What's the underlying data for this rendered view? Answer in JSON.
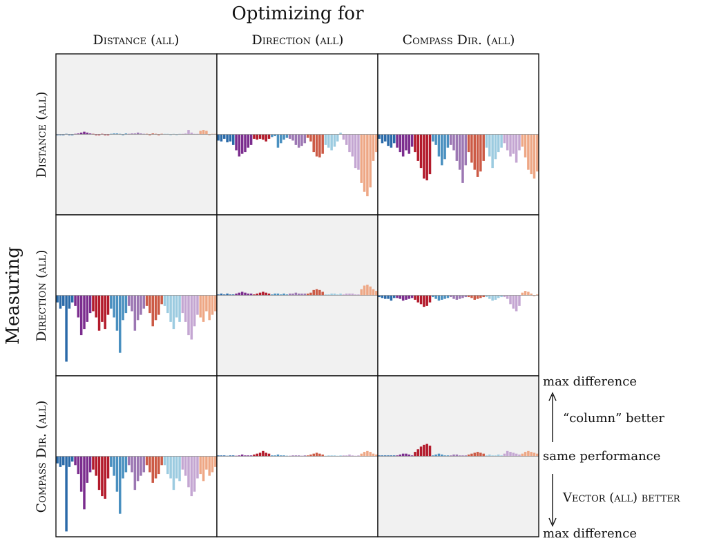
{
  "header": {
    "title": "Optimizing for",
    "columns": [
      "Distance (all)",
      "Direction (all)",
      "Compass Dir. (all)"
    ]
  },
  "side": {
    "title": "Measuring",
    "rows": [
      "Distance (all)",
      "Direction (all)",
      "Compass Dir. (all)"
    ]
  },
  "legend": {
    "max_top": "max difference",
    "better_top": "“column” better",
    "same": "same performance",
    "better_bottom": "Vector (all) better",
    "max_bottom": "max difference"
  },
  "palette": [
    "#2a6aa9",
    "#7b2d8e",
    "#b31b2c",
    "#4a90c0",
    "#9c77b3",
    "#cc5a45",
    "#9ccbe0",
    "#c4a6d2",
    "#eea785"
  ],
  "diagonal_fill": "#f1f1f1",
  "chart_data": {
    "type": "bar",
    "layout": "3x3 small multiples of relative performance bars per task",
    "grid": false,
    "ylim": [
      -1,
      1
    ],
    "groups": 9,
    "bars_per_group": 6,
    "panels": [
      {
        "row": 0,
        "col": 0,
        "diagonal": true,
        "values": [
          -0.01,
          -0.01,
          -0.01,
          0.0,
          -0.01,
          -0.01,
          0.0,
          0.01,
          0.02,
          0.03,
          0.02,
          0.01,
          0.0,
          -0.01,
          -0.01,
          0.0,
          -0.01,
          -0.01,
          0.0,
          0.01,
          0.01,
          0.0,
          -0.01,
          0.01,
          0.0,
          0.01,
          0.01,
          0.02,
          0.01,
          0.0,
          0.0,
          -0.01,
          0.01,
          0.0,
          -0.01,
          0.0,
          0.0,
          0.0,
          -0.01,
          0.0,
          -0.01,
          0.0,
          0.0,
          0.01,
          0.05,
          0.02,
          0.0,
          0.0,
          0.04,
          0.05,
          0.04,
          -0.01,
          0.0,
          0.0
        ]
      },
      {
        "row": 0,
        "col": 1,
        "diagonal": false,
        "values": [
          -0.07,
          -0.08,
          -0.05,
          -0.09,
          -0.08,
          -0.12,
          -0.18,
          -0.25,
          -0.22,
          -0.2,
          -0.15,
          -0.12,
          -0.05,
          -0.06,
          -0.05,
          -0.06,
          -0.08,
          -0.05,
          -0.03,
          -0.02,
          -0.15,
          -0.1,
          -0.06,
          -0.04,
          -0.05,
          -0.07,
          -0.12,
          -0.15,
          -0.13,
          -0.1,
          -0.04,
          -0.08,
          -0.2,
          -0.25,
          -0.26,
          -0.22,
          -0.12,
          -0.15,
          -0.18,
          -0.14,
          -0.08,
          0.02,
          -0.06,
          -0.12,
          -0.2,
          -0.25,
          -0.38,
          -0.4,
          -0.55,
          -0.65,
          -0.7,
          -0.6,
          -0.3,
          -0.2
        ]
      },
      {
        "row": 0,
        "col": 2,
        "diagonal": false,
        "values": [
          -0.05,
          -0.1,
          -0.08,
          -0.13,
          -0.15,
          -0.1,
          -0.15,
          -0.2,
          -0.25,
          -0.18,
          -0.22,
          -0.14,
          -0.2,
          -0.3,
          -0.38,
          -0.5,
          -0.52,
          -0.45,
          -0.08,
          -0.12,
          -0.25,
          -0.35,
          -0.28,
          -0.15,
          -0.12,
          -0.18,
          -0.3,
          -0.4,
          -0.55,
          -0.35,
          -0.2,
          -0.32,
          -0.4,
          -0.48,
          -0.42,
          -0.3,
          -0.15,
          -0.25,
          -0.38,
          -0.28,
          -0.2,
          -0.15,
          -0.1,
          -0.18,
          -0.25,
          -0.22,
          -0.32,
          -0.18,
          -0.14,
          -0.26,
          -0.4,
          -0.45,
          -0.5,
          -0.42
        ]
      },
      {
        "row": 1,
        "col": 0,
        "diagonal": false,
        "values": [
          -0.08,
          -0.15,
          -0.12,
          -0.75,
          -0.15,
          -0.08,
          -0.12,
          -0.25,
          -0.45,
          -0.38,
          -0.3,
          -0.2,
          -0.18,
          -0.25,
          -0.4,
          -0.3,
          -0.38,
          -0.22,
          -0.15,
          -0.25,
          -0.4,
          -0.65,
          -0.28,
          -0.2,
          -0.12,
          -0.18,
          -0.4,
          -0.28,
          -0.22,
          -0.15,
          -0.12,
          -0.2,
          -0.35,
          -0.28,
          -0.22,
          -0.1,
          -0.12,
          -0.2,
          -0.3,
          -0.38,
          -0.25,
          -0.3,
          -0.2,
          -0.3,
          -0.45,
          -0.5,
          -0.35,
          -0.22,
          -0.25,
          -0.3,
          -0.18,
          -0.28,
          -0.22,
          -0.18
        ]
      },
      {
        "row": 1,
        "col": 1,
        "diagonal": true,
        "values": [
          0.01,
          0.02,
          0.01,
          0.02,
          0.01,
          0.01,
          0.02,
          0.03,
          0.04,
          0.03,
          0.02,
          0.02,
          0.01,
          0.02,
          0.03,
          0.04,
          0.03,
          0.02,
          0.01,
          0.02,
          0.02,
          0.01,
          0.02,
          0.01,
          0.02,
          0.02,
          0.03,
          0.02,
          0.02,
          0.02,
          0.02,
          0.03,
          0.06,
          0.07,
          0.06,
          0.04,
          0.01,
          0.01,
          0.02,
          0.02,
          0.01,
          0.02,
          0.01,
          0.02,
          0.02,
          0.02,
          0.01,
          0.01,
          0.07,
          0.11,
          0.12,
          0.1,
          0.07,
          0.05
        ]
      },
      {
        "row": 1,
        "col": 2,
        "diagonal": false,
        "values": [
          -0.02,
          -0.03,
          -0.04,
          -0.04,
          -0.06,
          -0.03,
          -0.03,
          -0.04,
          -0.06,
          -0.05,
          -0.04,
          -0.03,
          -0.05,
          -0.08,
          -0.1,
          -0.13,
          -0.12,
          -0.08,
          -0.02,
          -0.04,
          -0.06,
          -0.05,
          -0.04,
          -0.03,
          -0.02,
          -0.04,
          -0.05,
          -0.04,
          -0.03,
          -0.02,
          -0.02,
          -0.03,
          -0.05,
          -0.04,
          -0.03,
          -0.02,
          -0.02,
          -0.04,
          -0.06,
          -0.05,
          -0.03,
          -0.02,
          -0.02,
          -0.04,
          -0.1,
          -0.15,
          -0.18,
          -0.12,
          0.03,
          0.05,
          0.04,
          0.02,
          -0.01,
          0.01
        ]
      },
      {
        "row": 2,
        "col": 0,
        "diagonal": false,
        "values": [
          -0.08,
          -0.12,
          -0.1,
          -0.85,
          -0.12,
          -0.06,
          -0.1,
          -0.2,
          -0.4,
          -0.6,
          -0.3,
          -0.18,
          -0.15,
          -0.22,
          -0.38,
          -0.45,
          -0.48,
          -0.25,
          -0.12,
          -0.22,
          -0.4,
          -0.65,
          -0.25,
          -0.18,
          -0.1,
          -0.18,
          -0.38,
          -0.28,
          -0.22,
          -0.18,
          -0.1,
          -0.18,
          -0.3,
          -0.25,
          -0.2,
          -0.1,
          -0.1,
          -0.2,
          -0.25,
          -0.38,
          -0.25,
          -0.28,
          -0.15,
          -0.22,
          -0.35,
          -0.45,
          -0.4,
          -0.25,
          -0.2,
          -0.28,
          -0.15,
          -0.22,
          -0.18,
          -0.12
        ]
      },
      {
        "row": 2,
        "col": 1,
        "diagonal": false,
        "values": [
          0.01,
          0.01,
          0.01,
          0.0,
          0.01,
          0.01,
          0.0,
          0.01,
          0.02,
          0.01,
          0.01,
          0.01,
          0.02,
          0.03,
          0.04,
          0.06,
          0.04,
          0.03,
          0.01,
          0.01,
          0.02,
          0.01,
          0.01,
          0.0,
          0.0,
          0.01,
          0.01,
          0.01,
          0.0,
          0.01,
          0.01,
          0.02,
          0.03,
          0.04,
          0.03,
          0.02,
          0.0,
          0.01,
          0.01,
          0.01,
          0.0,
          0.01,
          0.01,
          0.01,
          0.02,
          0.01,
          0.0,
          0.01,
          0.03,
          0.05,
          0.06,
          0.05,
          0.03,
          0.02
        ]
      },
      {
        "row": 2,
        "col": 2,
        "diagonal": true,
        "values": [
          0.01,
          0.01,
          0.01,
          0.01,
          0.01,
          0.01,
          0.01,
          0.02,
          0.03,
          0.03,
          0.02,
          0.01,
          0.05,
          0.08,
          0.11,
          0.13,
          0.14,
          0.12,
          0.01,
          0.02,
          0.03,
          0.02,
          0.01,
          0.01,
          0.01,
          0.02,
          0.02,
          0.01,
          0.01,
          0.01,
          0.02,
          0.03,
          0.04,
          0.05,
          0.04,
          0.03,
          0.01,
          0.02,
          0.01,
          0.01,
          0.02,
          0.01,
          0.03,
          0.06,
          0.05,
          0.04,
          0.03,
          0.02,
          0.03,
          0.05,
          0.06,
          0.05,
          0.04,
          0.03
        ]
      }
    ]
  }
}
